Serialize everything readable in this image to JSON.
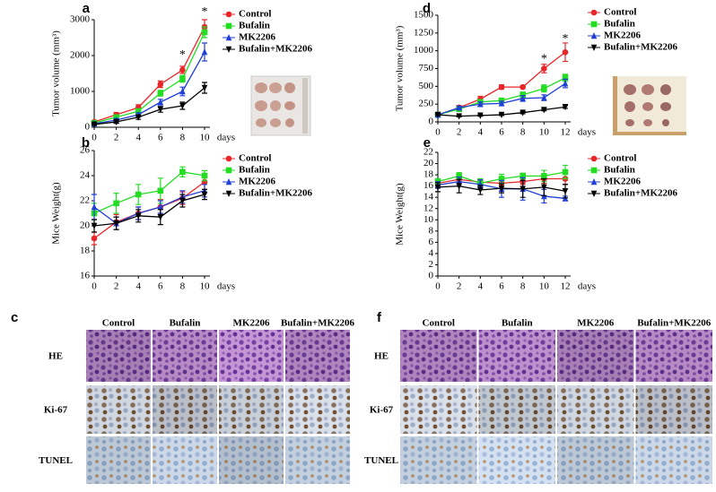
{
  "chart_data": [
    {
      "type": "line",
      "panel": "a",
      "ylabel": "Tumor volume (mm³)",
      "xlabel": "days",
      "x": [
        0,
        2,
        4,
        6,
        8,
        10
      ],
      "xlim": [
        0,
        10
      ],
      "xticks": [
        0,
        2,
        4,
        6,
        8,
        10
      ],
      "ylim": [
        0,
        3000
      ],
      "yticks": [
        0,
        1000,
        2000,
        3000
      ],
      "legend": "right",
      "series": [
        {
          "name": "Control",
          "color": "#e8262a",
          "marker": "circle",
          "values": [
            150,
            350,
            550,
            1200,
            1600,
            2800
          ],
          "errors": [
            40,
            60,
            80,
            90,
            100,
            200
          ]
        },
        {
          "name": "Bufalin",
          "color": "#22dd22",
          "marker": "square",
          "values": [
            120,
            280,
            450,
            950,
            1350,
            2650
          ],
          "errors": [
            30,
            50,
            60,
            80,
            90,
            150
          ]
        },
        {
          "name": "MK2206",
          "color": "#1f3fd6",
          "marker": "triangle-up",
          "values": [
            100,
            200,
            350,
            700,
            1000,
            2100
          ],
          "errors": [
            30,
            40,
            50,
            80,
            120,
            250
          ]
        },
        {
          "name": "Bufalin+MK2206",
          "color": "#000000",
          "marker": "triangle-down",
          "values": [
            80,
            150,
            280,
            500,
            600,
            1100
          ],
          "errors": [
            20,
            40,
            60,
            80,
            100,
            150
          ]
        }
      ],
      "annotations": [
        {
          "text": "*",
          "x": 8,
          "y": 2000
        },
        {
          "text": "*",
          "x": 10,
          "y": 3200
        }
      ]
    },
    {
      "type": "line",
      "panel": "b",
      "ylabel": "Mice Weight(g)",
      "xlabel": "days",
      "x": [
        0,
        2,
        4,
        6,
        8,
        10
      ],
      "xlim": [
        0,
        10
      ],
      "xticks": [
        0,
        2,
        4,
        6,
        8,
        10
      ],
      "ylim": [
        16,
        26
      ],
      "yticks": [
        16,
        18,
        20,
        22,
        24,
        26
      ],
      "legend": "right",
      "series": [
        {
          "name": "Control",
          "color": "#e8262a",
          "marker": "circle",
          "values": [
            19,
            20.3,
            21,
            21.5,
            22.2,
            23.5
          ],
          "errors": [
            0.5,
            0.6,
            0.5,
            0.6,
            0.5,
            0.6
          ]
        },
        {
          "name": "Bufalin",
          "color": "#22dd22",
          "marker": "square",
          "values": [
            21,
            21.8,
            22.5,
            22.8,
            24.3,
            24
          ],
          "errors": [
            0.8,
            0.8,
            0.8,
            1,
            0.4,
            0.4
          ]
        },
        {
          "name": "MK2206",
          "color": "#1f3fd6",
          "marker": "triangle-up",
          "values": [
            21.5,
            20.2,
            21,
            21.5,
            22.3,
            22.8
          ],
          "errors": [
            1,
            0.5,
            0.5,
            0.5,
            0.5,
            0.5
          ]
        },
        {
          "name": "Bufalin+MK2206",
          "color": "#000000",
          "marker": "triangle-down",
          "values": [
            20,
            20.2,
            20.8,
            20.7,
            22,
            22.5
          ],
          "errors": [
            0.5,
            0.5,
            0.5,
            0.6,
            0.5,
            0.4
          ]
        }
      ],
      "annotations": []
    },
    {
      "type": "line",
      "panel": "d",
      "ylabel": "Tumor volume (mm³)",
      "xlabel": "days",
      "x": [
        0,
        2,
        4,
        6,
        8,
        10,
        12
      ],
      "xlim": [
        0,
        12
      ],
      "xticks": [
        0,
        2,
        4,
        6,
        8,
        10,
        12
      ],
      "ylim": [
        0,
        1500
      ],
      "yticks": [
        0,
        250,
        500,
        750,
        1000,
        1250,
        1500
      ],
      "legend": "right",
      "series": [
        {
          "name": "Control",
          "color": "#e8262a",
          "marker": "circle",
          "values": [
            100,
            200,
            320,
            490,
            490,
            750,
            980
          ],
          "errors": [
            20,
            30,
            40,
            30,
            20,
            60,
            130
          ]
        },
        {
          "name": "Bufalin",
          "color": "#22dd22",
          "marker": "square",
          "values": [
            100,
            180,
            280,
            300,
            380,
            470,
            620
          ],
          "errors": [
            20,
            30,
            30,
            30,
            40,
            50,
            50
          ]
        },
        {
          "name": "MK2206",
          "color": "#1f3fd6",
          "marker": "triangle-up",
          "values": [
            100,
            200,
            250,
            260,
            330,
            340,
            540
          ],
          "errors": [
            20,
            20,
            30,
            30,
            40,
            40,
            60
          ]
        },
        {
          "name": "Bufalin+MK2206",
          "color": "#000000",
          "marker": "triangle-down",
          "values": [
            100,
            80,
            90,
            100,
            130,
            170,
            210
          ],
          "errors": [
            10,
            10,
            10,
            10,
            15,
            15,
            20
          ]
        }
      ],
      "annotations": [
        {
          "text": "*",
          "x": 10,
          "y": 880
        },
        {
          "text": "*",
          "x": 12,
          "y": 1160
        }
      ]
    },
    {
      "type": "line",
      "panel": "e",
      "ylabel": "Mice Weight(g)",
      "xlabel": "days",
      "x": [
        0,
        2,
        4,
        6,
        8,
        10,
        12
      ],
      "xlim": [
        0,
        12
      ],
      "xticks": [
        0,
        2,
        4,
        6,
        8,
        10,
        12
      ],
      "ylim": [
        0,
        22
      ],
      "yticks": [
        0,
        2,
        4,
        6,
        8,
        10,
        12,
        14,
        16,
        18,
        20,
        22
      ],
      "legend": "right",
      "series": [
        {
          "name": "Control",
          "color": "#e8262a",
          "marker": "circle",
          "values": [
            16.5,
            17.2,
            16.7,
            16.5,
            16.8,
            17.3,
            17.3
          ],
          "errors": [
            0.5,
            0.6,
            0.5,
            0.6,
            0.5,
            0.8,
            1
          ]
        },
        {
          "name": "Bufalin",
          "color": "#22dd22",
          "marker": "square",
          "values": [
            16.8,
            17.8,
            16.5,
            17.3,
            17.8,
            17.8,
            18.5
          ],
          "errors": [
            0.5,
            0.6,
            0.8,
            0.8,
            0.5,
            1,
            1.2
          ]
        },
        {
          "name": "MK2206",
          "color": "#1f3fd6",
          "marker": "triangle-up",
          "values": [
            16.2,
            16.8,
            16.3,
            15.5,
            15.5,
            14.2,
            13.8
          ],
          "errors": [
            0.6,
            0.8,
            0.8,
            1.5,
            2,
            1.2,
            0.4
          ]
        },
        {
          "name": "Bufalin+MK2206",
          "color": "#000000",
          "marker": "triangle-down",
          "values": [
            15.8,
            16,
            15.3,
            15.6,
            15.5,
            15.8,
            15.1
          ],
          "errors": [
            0.8,
            1.2,
            0.8,
            0.8,
            1.5,
            1.5,
            1.2
          ]
        }
      ],
      "annotations": []
    }
  ],
  "image_panels": [
    {
      "panel": "c",
      "columns": [
        "Control",
        "Bufalin",
        "MK2206",
        "Bufalin+MK2206"
      ],
      "rows": [
        "HE",
        "Ki-67",
        "TUNEL"
      ]
    },
    {
      "panel": "f",
      "columns": [
        "Control",
        "Bufalin",
        "MK2206",
        "Bufalin+MK2206"
      ],
      "rows": [
        "HE",
        "Ki-67",
        "TUNEL"
      ]
    }
  ]
}
